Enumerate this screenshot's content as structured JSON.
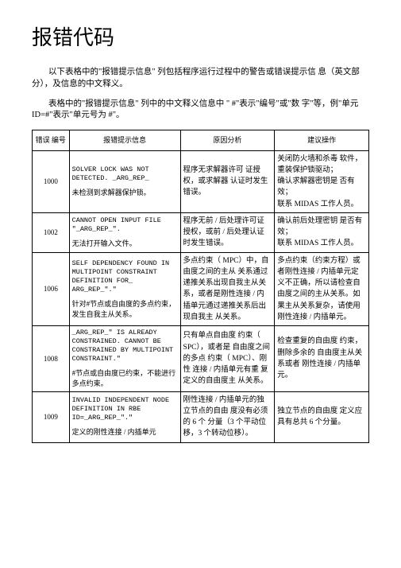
{
  "title": "报错代码",
  "intro1": "以下表格中的\"报错提示信息\" 列包括程序运行过程中的警告或错误提示信 息（英文部分），及信息的中文释义。",
  "intro2": "表格中的\"报错提示信息\" 列中的中文释义信息中 \" #\"表示\"编号\"或\"数 字\"等，例\"单元 ID=#\"表示\"单元号为 #\"。",
  "headers": {
    "h1": "错误 编号",
    "h2": "报错提示信息",
    "h3": "原因分析",
    "h4": "建议操作"
  },
  "rows": [
    {
      "code": "1000",
      "msg_en": "SOLVER LOCK WAS NOT DETECTED. _ARG_REP_",
      "msg_zh": "未检测到求解器保护锁。",
      "cause": "程序无求解器许可 证授权，或求解器 认证时发生错误。",
      "op": "关闭防火墙和杀毒 软件，重装保护锁驱动；\n确认求解器密钥是 否有效；\n联系 MIDAS 工作人员。"
    },
    {
      "code": "1002",
      "msg_en": "CANNOT OPEN INPUT FILE \"_ARG_REP_\".",
      "msg_zh": "无法打开输入文件。",
      "cause": "程序无前 / 后处理许可证授权，或前 / 后处理认证时发生错误。",
      "op": "确认前后处理密钥 是否有效；\n联系 MIDAS 工作人员。"
    },
    {
      "code": "1006",
      "msg_en": "SELF DEPENDENCY FOUND IN MULTIPOINT CONSTRAINT DEFINITION FOR_ ARG_REP_\".\"",
      "msg_zh": "针对#节点或自由度的多点约束，发生自我主从关系。",
      "cause": "多点约束（ MPC）中，自由度之间的主从 关系通过递推关系出现自我主从关系，或者是刚性连接 / 内插单元通过递推关系后出现自我主 从关系。",
      "op": "多点约束（约束方程）或者刚性连接 / 内插单元定义不正确，所以请检查自由度之间的主从关系。如果主从关系复杂，请使用刚性连接 / 内插单元。"
    },
    {
      "code": "1008",
      "msg_en": "_ARG_REP_\" IS ALREADY CONSTRAINED. CANNOT BE CONSTRAINED BY MULTIPOINT CONSTRAINT.\"",
      "msg_zh": "#节点或自由度已约束，不能进行多点约束。",
      "cause": "只有单点自由度 约束（ SPC），或者是 自由度之间的多点 约束（ MPC）、刚性 连接 / 内插单元有重 复定义的自由度主 从关系。",
      "op": "检查重复的自由度 约束，删除多余的 自由度主从关系或者 刚性连接 / 内插单 元。"
    },
    {
      "code": "1009",
      "msg_en": "INVALID INDEPENDENT NODE DEFINITION IN RBE ID=_ARG_REP_\".\"",
      "msg_zh": "定义的刚性连接 / 内插单元",
      "cause": "刚性连接 / 内插单元的独立节点的自由 度没有必须的 6 个 分量（3 个平动位移，3 个转动位移）。",
      "op": "独立节点的自由度 定义应具有总共 6 个分量。"
    }
  ]
}
